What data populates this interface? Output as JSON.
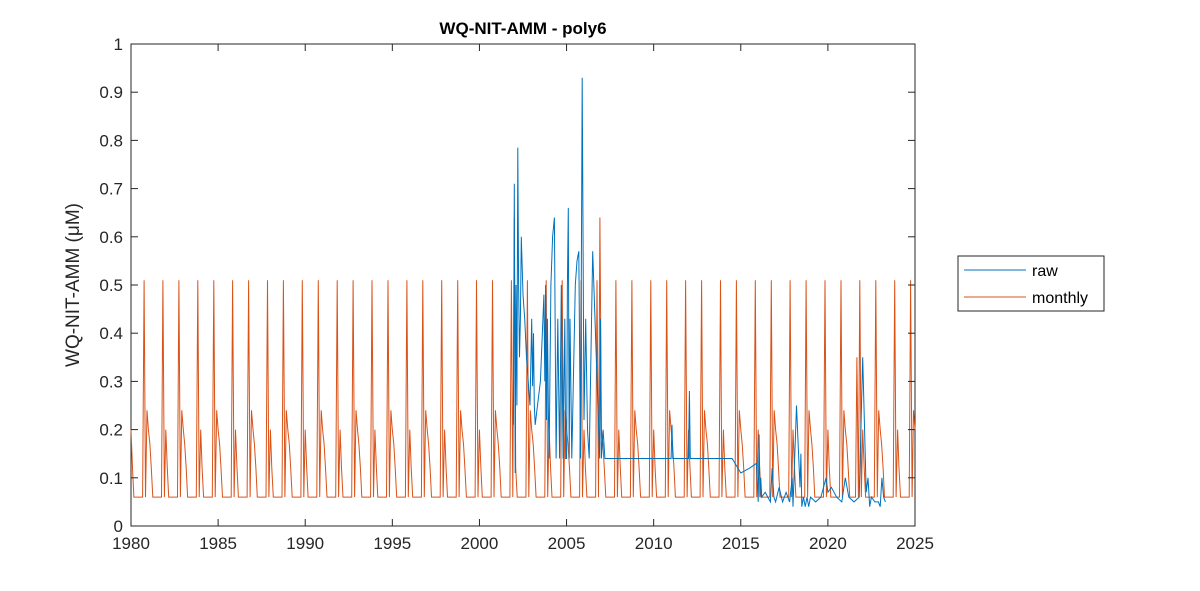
{
  "chart_data": {
    "type": "line",
    "title": "WQ-NIT-AMM - poly6",
    "xlabel": "",
    "ylabel": "WQ-NIT-AMM (μM)",
    "xlim": [
      1980,
      2025
    ],
    "ylim": [
      0,
      1
    ],
    "xticks": [
      "1980",
      "1985",
      "1990",
      "1995",
      "2000",
      "2005",
      "2010",
      "2015",
      "2020",
      "2025"
    ],
    "yticks": [
      "0",
      "0.1",
      "0.2",
      "0.3",
      "0.4",
      "0.5",
      "0.6",
      "0.7",
      "0.8",
      "0.9",
      "1"
    ],
    "grid": false,
    "legend": {
      "placement": "outside-right",
      "entries": [
        "raw",
        "monthly"
      ]
    },
    "series": [
      {
        "name": "raw",
        "color": "#0072BD",
        "x": [
          2001.95,
          2002.0,
          2002.05,
          2002.1,
          2002.15,
          2002.2,
          2002.25,
          2002.3,
          2002.35,
          2002.4,
          2002.5,
          2002.6,
          2002.7,
          2002.8,
          2002.9,
          2003.0,
          2003.05,
          2003.1,
          2003.15,
          2003.2,
          2003.3,
          2003.5,
          2003.7,
          2003.75,
          2003.8,
          2003.85,
          2003.9,
          2003.95,
          2004.0,
          2004.1,
          2004.2,
          2004.3,
          2004.4,
          2004.5,
          2004.6,
          2004.7,
          2004.8,
          2004.9,
          2004.95,
          2005.0,
          2005.05,
          2005.1,
          2005.15,
          2005.2,
          2005.3,
          2005.5,
          2005.6,
          2005.7,
          2005.8,
          2005.9,
          2006.0,
          2006.1,
          2006.2,
          2006.3,
          2006.5,
          2006.9,
          2006.95,
          2007.0,
          2007.1,
          2007.2,
          2007.3,
          2007.5,
          2007.7,
          2007.8,
          2007.9,
          2008.0,
          2008.1,
          2008.2,
          2008.3,
          2008.5,
          2008.7,
          2008.9,
          2009.5,
          2010.0,
          2011.0,
          2011.05,
          2011.1,
          2012.0,
          2012.05,
          2012.1,
          2013.0,
          2014.0,
          2014.5,
          2015.0,
          2015.5,
          2015.9,
          2016.0,
          2016.05,
          2016.1,
          2016.15,
          2016.2,
          2016.4,
          2016.7,
          2016.8,
          2016.9,
          2017.0,
          2017.2,
          2017.4,
          2017.6,
          2017.8,
          2017.95,
          2018.0,
          2018.2,
          2018.4,
          2018.45,
          2018.5,
          2018.6,
          2018.7,
          2018.8,
          2018.9,
          2019.0,
          2019.3,
          2019.6,
          2019.9,
          2020.0,
          2020.2,
          2020.5,
          2020.8,
          2021.0,
          2021.2,
          2021.5,
          2021.8,
          2022.0,
          2022.2,
          2022.3,
          2022.4,
          2022.5,
          2022.7,
          2022.9,
          2023.0,
          2023.1,
          2023.2,
          2023.3
        ],
        "y": [
          0.21,
          0.71,
          0.11,
          0.5,
          0.25,
          0.785,
          0.5,
          0.35,
          0.43,
          0.6,
          0.48,
          0.43,
          0.35,
          0.3,
          0.25,
          0.43,
          0.29,
          0.4,
          0.25,
          0.21,
          0.24,
          0.3,
          0.48,
          0.3,
          0.5,
          0.22,
          0.43,
          0.25,
          0.14,
          0.5,
          0.6,
          0.64,
          0.14,
          0.43,
          0.14,
          0.5,
          0.14,
          0.43,
          0.14,
          0.14,
          0.5,
          0.66,
          0.14,
          0.43,
          0.14,
          0.5,
          0.55,
          0.57,
          0.14,
          0.93,
          0.22,
          0.43,
          0.2,
          0.14,
          0.57,
          0.14,
          0.43,
          0.14,
          0.2,
          0.14,
          0.14,
          0.14,
          0.14,
          0.14,
          0.14,
          0.14,
          0.14,
          0.14,
          0.14,
          0.14,
          0.14,
          0.14,
          0.14,
          0.14,
          0.14,
          0.21,
          0.14,
          0.14,
          0.28,
          0.14,
          0.14,
          0.14,
          0.14,
          0.11,
          0.12,
          0.13,
          0.05,
          0.19,
          0.06,
          0.1,
          0.06,
          0.07,
          0.05,
          0.12,
          0.06,
          0.05,
          0.08,
          0.05,
          0.07,
          0.05,
          0.1,
          0.04,
          0.25,
          0.08,
          0.15,
          0.04,
          0.06,
          0.04,
          0.06,
          0.04,
          0.06,
          0.05,
          0.06,
          0.1,
          0.07,
          0.08,
          0.06,
          0.05,
          0.1,
          0.06,
          0.05,
          0.06,
          0.35,
          0.07,
          0.1,
          0.04,
          0.06,
          0.05,
          0.05,
          0.04,
          0.1,
          0.06,
          0.05
        ]
      },
      {
        "name": "monthly",
        "color": "#D95319",
        "cycle_months": [
          0.2,
          0.12,
          0.06,
          0.06,
          0.06,
          0.06,
          0.06,
          0.06,
          0.06,
          0.51,
          0.06,
          0.24,
          0.2,
          0.17,
          0.12,
          0.06,
          0.06,
          0.06,
          0.06,
          0.06,
          0.06,
          0.06,
          0.51,
          0.06
        ],
        "cycle_years": 2,
        "overrides": [
          {
            "x": 2002.0,
            "y": 0.64
          },
          {
            "x": 2006.95,
            "y": 0.64
          },
          {
            "x": 2021.7,
            "y": 0.35
          }
        ]
      }
    ]
  }
}
